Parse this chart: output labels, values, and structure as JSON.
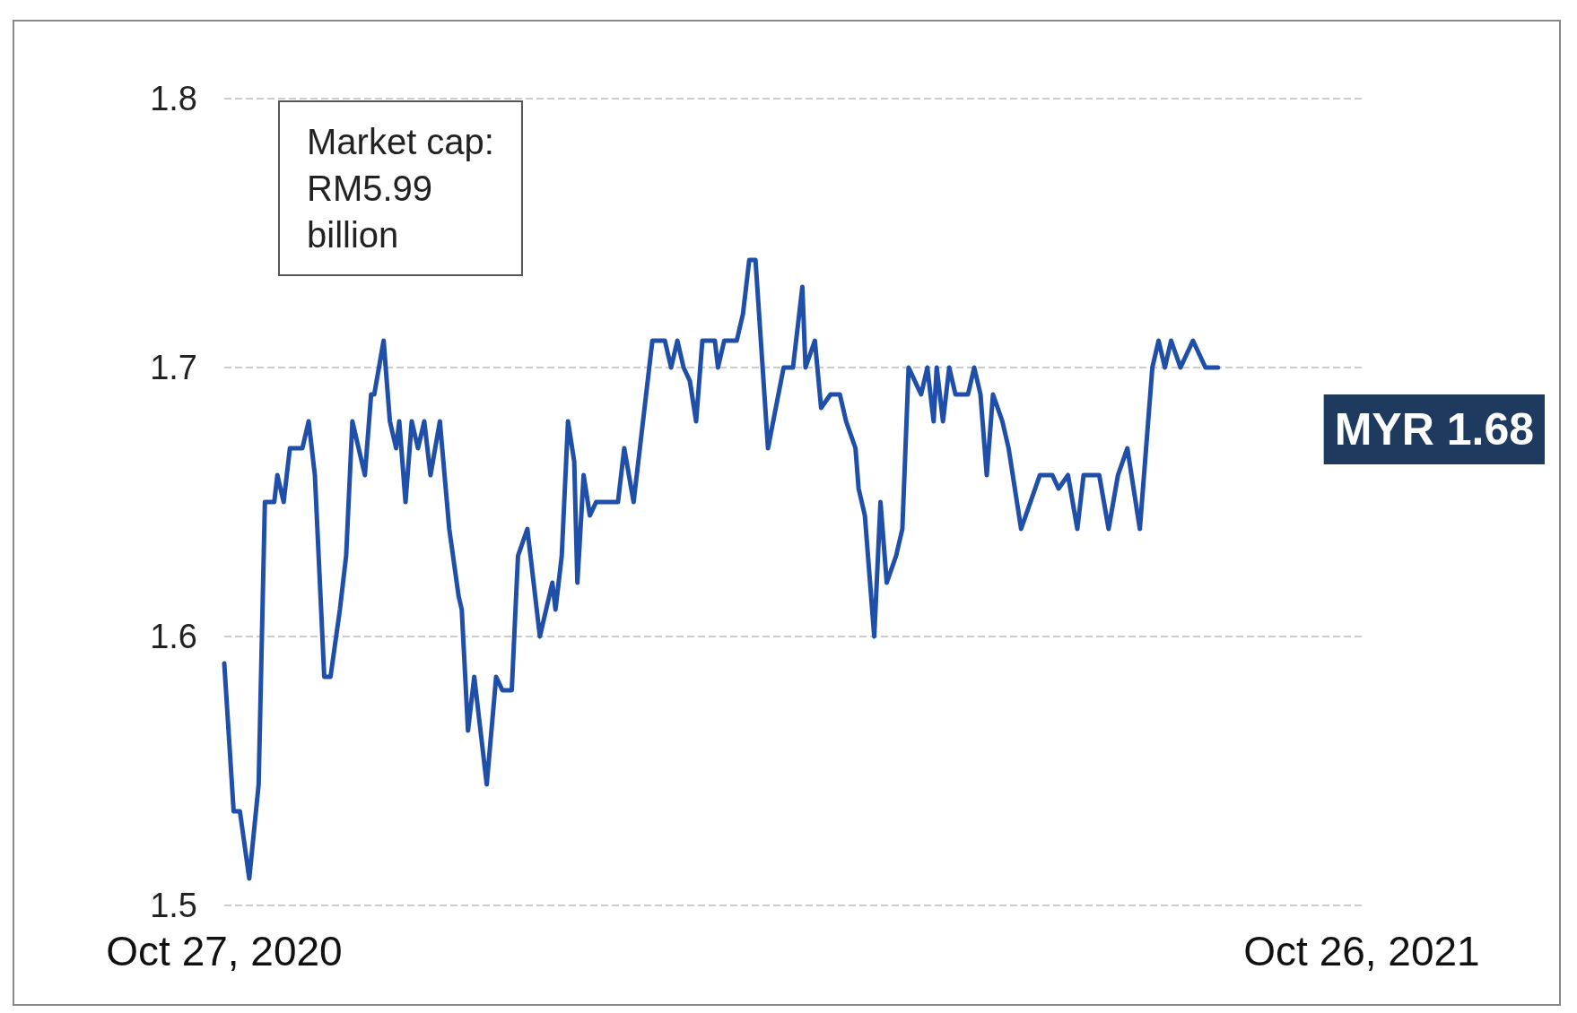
{
  "chart_data": {
    "type": "line",
    "color": "#1f4fa8",
    "x": [
      "2020-10-27",
      "2020-10-30",
      "2020-11-01",
      "2020-11-04",
      "2020-11-07",
      "2020-11-09",
      "2020-11-12",
      "2020-11-13",
      "2020-11-15",
      "2020-11-17",
      "2020-11-21",
      "2020-11-23",
      "2020-11-25",
      "2020-11-28",
      "2020-11-30",
      "2020-12-03",
      "2020-12-05",
      "2020-12-07",
      "2020-12-11",
      "2020-12-13",
      "2020-12-14",
      "2020-12-17",
      "2020-12-19",
      "2020-12-21",
      "2020-12-22",
      "2020-12-24",
      "2020-12-26",
      "2020-12-28",
      "2020-12-30",
      "2021-01-01",
      "2021-01-04",
      "2021-01-07",
      "2021-01-10",
      "2021-01-11",
      "2021-01-13",
      "2021-01-15",
      "2021-01-19",
      "2021-01-22",
      "2021-01-24",
      "2021-01-27",
      "2021-01-29",
      "2021-02-01",
      "2021-02-05",
      "2021-02-09",
      "2021-02-10",
      "2021-02-12",
      "2021-02-14",
      "2021-02-16",
      "2021-02-17",
      "2021-02-19",
      "2021-02-21",
      "2021-02-23",
      "2021-03-02",
      "2021-03-04",
      "2021-03-07",
      "2021-03-09",
      "2021-03-13",
      "2021-03-17",
      "2021-03-19",
      "2021-03-21",
      "2021-03-23",
      "2021-03-25",
      "2021-03-27",
      "2021-03-29",
      "2021-04-02",
      "2021-04-03",
      "2021-04-05",
      "2021-04-09",
      "2021-04-11",
      "2021-04-13",
      "2021-04-15",
      "2021-04-19",
      "2021-04-24",
      "2021-04-27",
      "2021-04-30",
      "2021-05-01",
      "2021-05-04",
      "2021-05-06",
      "2021-05-09",
      "2021-05-12",
      "2021-05-14",
      "2021-05-17",
      "2021-05-18",
      "2021-05-20",
      "2021-05-23",
      "2021-05-25",
      "2021-05-27",
      "2021-05-30",
      "2021-06-01",
      "2021-06-03",
      "2021-06-07",
      "2021-06-09",
      "2021-06-11",
      "2021-06-12",
      "2021-06-14",
      "2021-06-16",
      "2021-06-18",
      "2021-06-22",
      "2021-06-24",
      "2021-06-26",
      "2021-06-28",
      "2021-06-30",
      "2021-07-03",
      "2021-07-05",
      "2021-07-09",
      "2021-07-12",
      "2021-07-15",
      "2021-07-19",
      "2021-07-21",
      "2021-07-24",
      "2021-07-27",
      "2021-07-29",
      "2021-08-03",
      "2021-08-06",
      "2021-08-09",
      "2021-08-12",
      "2021-08-16",
      "2021-08-18",
      "2021-08-20",
      "2021-08-22",
      "2021-08-24",
      "2021-08-26",
      "2021-08-29",
      "2021-09-02",
      "2021-09-06",
      "2021-09-10"
    ],
    "values": [
      1.59,
      1.535,
      1.535,
      1.51,
      1.545,
      1.65,
      1.65,
      1.66,
      1.65,
      1.67,
      1.67,
      1.68,
      1.66,
      1.585,
      1.585,
      1.61,
      1.63,
      1.68,
      1.66,
      1.69,
      1.69,
      1.71,
      1.68,
      1.67,
      1.68,
      1.65,
      1.68,
      1.67,
      1.68,
      1.66,
      1.68,
      1.64,
      1.615,
      1.61,
      1.565,
      1.585,
      1.545,
      1.585,
      1.58,
      1.58,
      1.63,
      1.64,
      1.6,
      1.62,
      1.61,
      1.63,
      1.68,
      1.665,
      1.62,
      1.66,
      1.645,
      1.65,
      1.65,
      1.67,
      1.65,
      1.67,
      1.71,
      1.71,
      1.7,
      1.71,
      1.7,
      1.695,
      1.68,
      1.71,
      1.71,
      1.7,
      1.71,
      1.71,
      1.72,
      1.74,
      1.74,
      1.67,
      1.7,
      1.7,
      1.73,
      1.7,
      1.71,
      1.685,
      1.69,
      1.69,
      1.68,
      1.67,
      1.655,
      1.645,
      1.6,
      1.65,
      1.62,
      1.63,
      1.64,
      1.7,
      1.69,
      1.7,
      1.68,
      1.7,
      1.68,
      1.7,
      1.69,
      1.69,
      1.7,
      1.69,
      1.66,
      1.69,
      1.68,
      1.67,
      1.64,
      1.65,
      1.66,
      1.66,
      1.655,
      1.66,
      1.64,
      1.66,
      1.66,
      1.64,
      1.66,
      1.67,
      1.64,
      1.67,
      1.7,
      1.71,
      1.7,
      1.71,
      1.7,
      1.71,
      1.7,
      1.7
    ],
    "xlim": [
      "2020-10-27",
      "2021-10-26"
    ],
    "xticks": [
      {
        "value": "2020-10-27",
        "label": "Oct 27, 2020"
      },
      {
        "value": "2021-10-26",
        "label": "Oct 26, 2021"
      }
    ],
    "ylim": [
      1.5,
      1.8
    ],
    "yticks": [
      1.5,
      1.6,
      1.7,
      1.8
    ],
    "grid": "y",
    "marker": "none",
    "line_style": "solid",
    "annotations": [
      "Market cap: RM5.99 billion",
      "MYR 1.68"
    ]
  }
}
